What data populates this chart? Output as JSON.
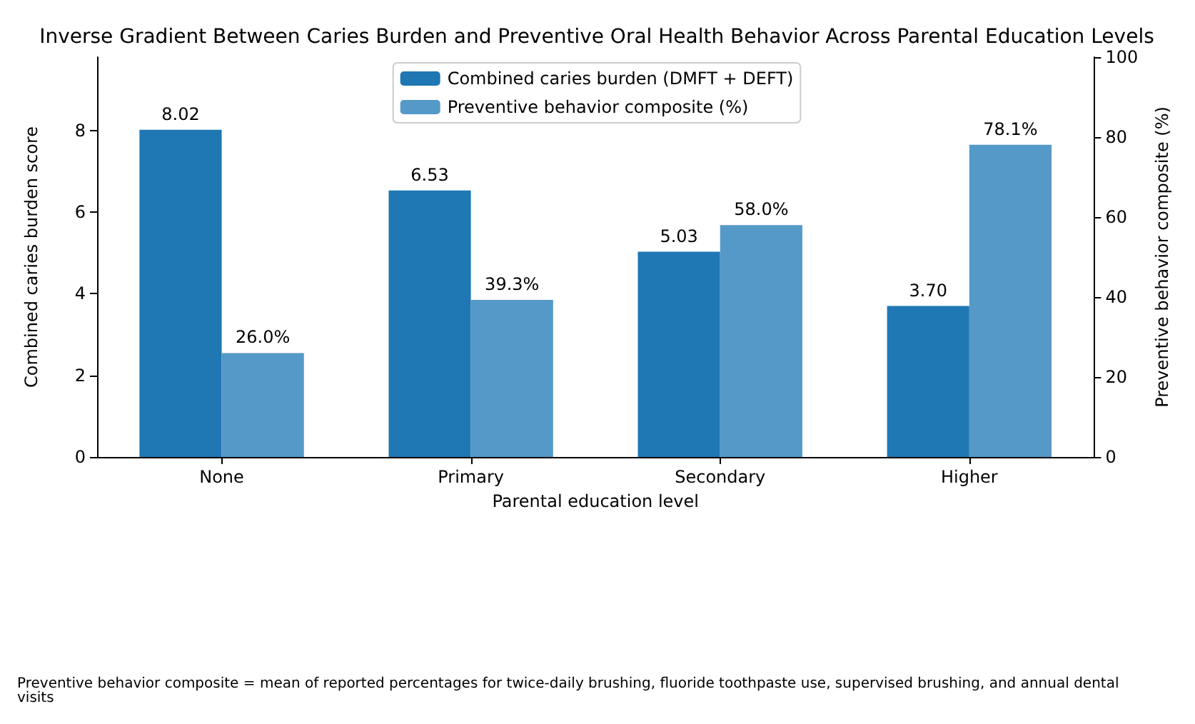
{
  "chart_data": {
    "type": "bar",
    "title": "Inverse Gradient Between Caries Burden and Preventive Oral Health Behavior Across Parental Education Levels",
    "xlabel": "Parental education level",
    "ylabel": "Combined caries burden score",
    "y2label": "Preventive behavior composite (%)",
    "categories": [
      "None",
      "Primary",
      "Secondary",
      "Higher"
    ],
    "series": [
      {
        "name": "Combined caries burden (DMFT + DEFT)",
        "color": "#1f77b4",
        "values": [
          8.02,
          6.53,
          5.03,
          3.7
        ],
        "value_labels": [
          "8.02",
          "6.53",
          "5.03",
          "3.70"
        ]
      },
      {
        "name": "Preventive behavior composite (%)",
        "color": "#5599c8",
        "axis": "y2",
        "values": [
          26.0,
          39.3,
          58.0,
          78.1
        ],
        "value_labels": [
          "26.0%",
          "39.3%",
          "58.0%",
          "78.1%"
        ]
      }
    ],
    "ylim": [
      0,
      9.8
    ],
    "yticks": [
      0,
      2,
      4,
      6,
      8
    ],
    "y2lim": [
      0,
      100
    ],
    "y2ticks": [
      0,
      20,
      40,
      60,
      80,
      100
    ],
    "legend": "top",
    "grid": false,
    "annotations": [
      "Preventive behavior composite = mean of reported percentages for twice-daily brushing, fluoride toothpaste use, supervised brushing, and annual dental visits"
    ]
  }
}
